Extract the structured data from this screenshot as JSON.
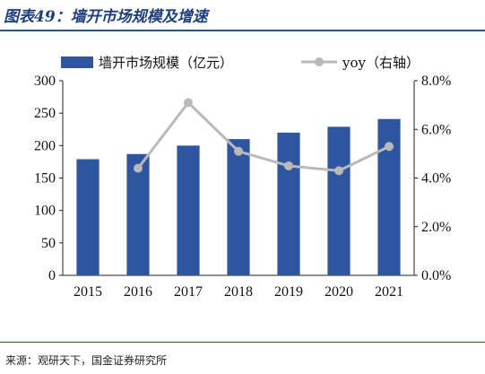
{
  "figure": {
    "title": "图表49：墙开市场规模及增速",
    "source": "来源：观研天下，国金证券研究所"
  },
  "chart_data": {
    "type": "bar+line",
    "categories": [
      "2015",
      "2016",
      "2017",
      "2018",
      "2019",
      "2020",
      "2021"
    ],
    "series": [
      {
        "name": "墙开市场规模（亿元）",
        "kind": "bar",
        "axis": "left",
        "color": "#2e55a0",
        "values": [
          179,
          187,
          200,
          210,
          220,
          229,
          241
        ]
      },
      {
        "name": "yoy（右轴）",
        "kind": "line",
        "axis": "right",
        "color": "#b9b9b9",
        "values": [
          null,
          4.4,
          7.1,
          5.1,
          4.5,
          4.3,
          5.3
        ]
      }
    ],
    "y_left": {
      "min": 0,
      "max": 300,
      "ticks": [
        "0",
        "50",
        "100",
        "150",
        "200",
        "250",
        "300"
      ]
    },
    "y_right": {
      "min": 0,
      "max": 8,
      "ticks": [
        "0.0%",
        "2.0%",
        "4.0%",
        "6.0%",
        "8.0%"
      ]
    },
    "grid": false,
    "legend": "top"
  }
}
